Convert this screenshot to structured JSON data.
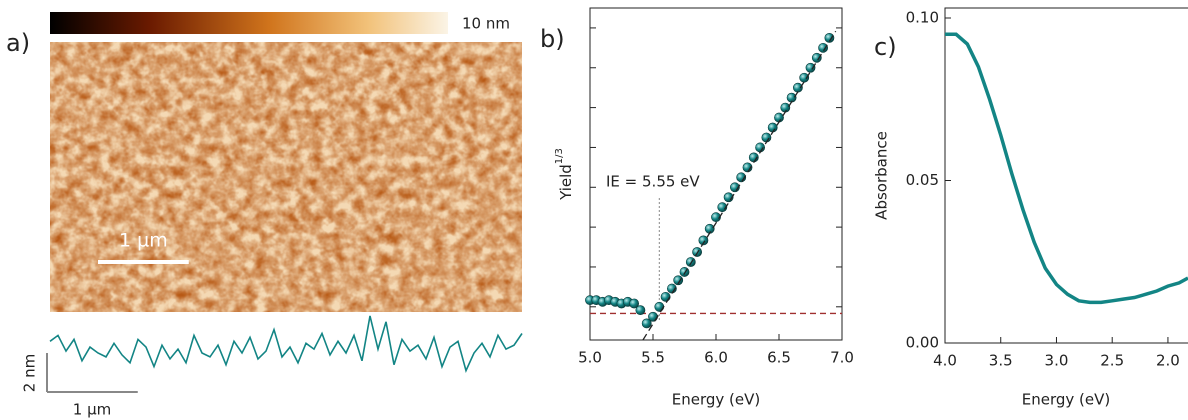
{
  "chart_data": [
    {
      "type": "afm",
      "panel_label": "a)",
      "colorbar": {
        "range": [
          0,
          10
        ],
        "label": "10 nm"
      },
      "image_width": 5.2,
      "image_scale_bar": {
        "value": 1,
        "label": "1 µm"
      },
      "profile": {
        "color": "#138585",
        "xlim": [
          0,
          5.2
        ],
        "ylim": [
          0,
          4
        ],
        "values": [
          2.6,
          2.9,
          2.1,
          2.7,
          1.6,
          2.3,
          2.0,
          1.8,
          2.5,
          1.9,
          1.5,
          2.7,
          2.3,
          1.3,
          2.4,
          1.7,
          2.2,
          1.5,
          2.9,
          2.0,
          1.8,
          2.4,
          1.4,
          2.6,
          2.0,
          2.8,
          1.7,
          2.1,
          3.2,
          1.8,
          2.3,
          1.5,
          2.5,
          2.2,
          3.0,
          1.9,
          2.6,
          2.0,
          2.9,
          1.6,
          3.9,
          2.2,
          3.6,
          1.4,
          2.7,
          2.1,
          2.4,
          1.7,
          2.8,
          1.3,
          2.3,
          2.6,
          1.1,
          2.0,
          2.5,
          1.8,
          2.9,
          2.2,
          2.4,
          3.0
        ]
      },
      "profile_scale_x": {
        "value": 1,
        "label": "1 µm"
      },
      "profile_scale_y": {
        "value": 2,
        "label": "2 nm"
      }
    },
    {
      "type": "scatter",
      "panel_label": "b)",
      "xlabel": "Energy (eV)",
      "ylabel": {
        "text": "Yield",
        "superscript": "1/3"
      },
      "annotation": "IE = 5.55 eV",
      "ie_marker": 5.55,
      "xlim": [
        5.0,
        7.0
      ],
      "ylim": [
        0,
        1
      ],
      "xticks": [
        {
          "value": 5.0,
          "label": "5.0"
        },
        {
          "value": 5.5,
          "label": "5.5"
        },
        {
          "value": 6.0,
          "label": "6.0"
        },
        {
          "value": 6.5,
          "label": "6.5"
        },
        {
          "value": 7.0,
          "label": "7.0"
        }
      ],
      "yticks": [
        0.1,
        0.22,
        0.34,
        0.46,
        0.58,
        0.7,
        0.82,
        0.94
      ],
      "color": "#138585",
      "x": [
        5.0,
        5.05,
        5.1,
        5.15,
        5.2,
        5.25,
        5.3,
        5.35,
        5.4,
        5.45,
        5.5,
        5.55,
        5.6,
        5.65,
        5.7,
        5.75,
        5.8,
        5.85,
        5.9,
        5.95,
        6.0,
        6.05,
        6.1,
        6.15,
        6.2,
        6.25,
        6.3,
        6.35,
        6.4,
        6.45,
        6.5,
        6.55,
        6.6,
        6.65,
        6.7,
        6.75,
        6.8,
        6.85,
        6.9
      ],
      "values": [
        0.12,
        0.12,
        0.115,
        0.12,
        0.115,
        0.11,
        0.115,
        0.11,
        0.09,
        0.05,
        0.07,
        0.1,
        0.13,
        0.155,
        0.18,
        0.205,
        0.235,
        0.265,
        0.3,
        0.335,
        0.37,
        0.4,
        0.43,
        0.46,
        0.49,
        0.52,
        0.55,
        0.58,
        0.61,
        0.64,
        0.67,
        0.7,
        0.73,
        0.76,
        0.79,
        0.82,
        0.85,
        0.88,
        0.91
      ],
      "fit_line": {
        "x": [
          5.42,
          6.95
        ],
        "values": [
          0,
          0.93
        ]
      },
      "baseline": {
        "value": 0.08,
        "color": "#a03030"
      }
    },
    {
      "type": "line",
      "panel_label": "c)",
      "xlabel": "Energy (eV)",
      "ylabel": "Absorbance",
      "xlim": [
        4.0,
        1.82
      ],
      "ylim": [
        0,
        0.1
      ],
      "xticks": [
        {
          "value": 4.0,
          "label": "4.0"
        },
        {
          "value": 3.5,
          "label": "3.5"
        },
        {
          "value": 3.0,
          "label": "3.0"
        },
        {
          "value": 2.5,
          "label": "2.5"
        },
        {
          "value": 2.0,
          "label": "2.0"
        }
      ],
      "yticks": [
        {
          "value": 0,
          "label": "0.00"
        },
        {
          "value": 0.05,
          "label": "0.05"
        },
        {
          "value": 0.1,
          "label": "0.10"
        }
      ],
      "color": "#138585",
      "x": [
        4.0,
        3.9,
        3.8,
        3.7,
        3.6,
        3.5,
        3.4,
        3.3,
        3.2,
        3.1,
        3.0,
        2.9,
        2.8,
        2.7,
        2.6,
        2.5,
        2.4,
        2.3,
        2.2,
        2.1,
        2.0,
        1.9,
        1.82
      ],
      "values": [
        0.095,
        0.095,
        0.092,
        0.085,
        0.075,
        0.064,
        0.052,
        0.041,
        0.031,
        0.023,
        0.018,
        0.015,
        0.013,
        0.0125,
        0.0125,
        0.013,
        0.0135,
        0.014,
        0.015,
        0.016,
        0.0175,
        0.0185,
        0.02
      ]
    }
  ]
}
